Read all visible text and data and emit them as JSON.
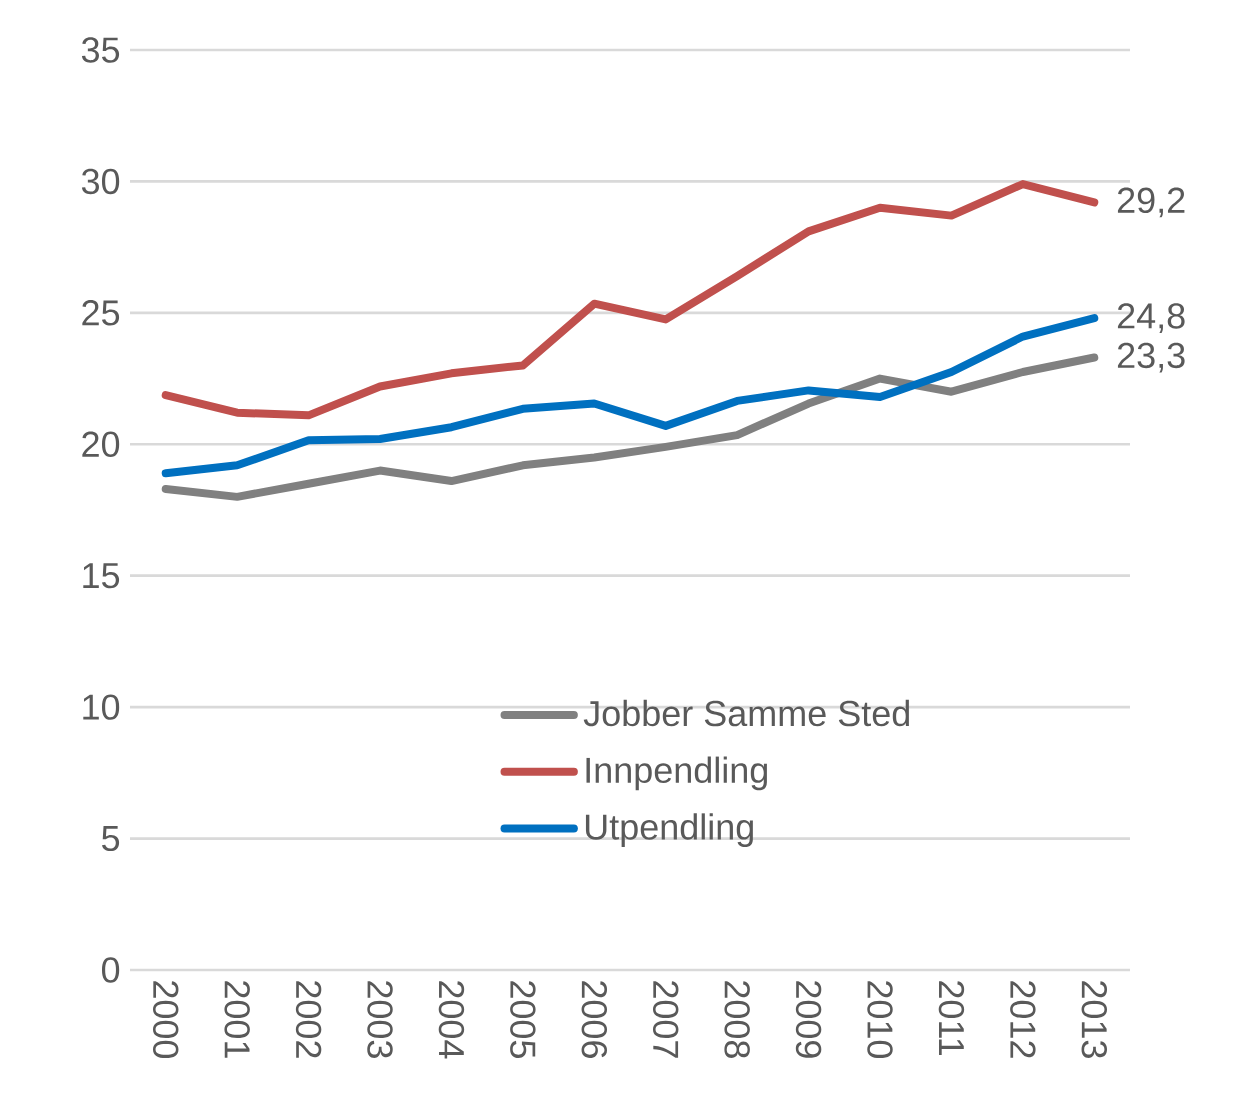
{
  "chart_data": {
    "type": "line",
    "categories": [
      "2000",
      "2001",
      "2002",
      "2003",
      "2004",
      "2005",
      "2006",
      "2007",
      "2008",
      "2009",
      "2010",
      "2011",
      "2012",
      "2013"
    ],
    "series": [
      {
        "name": "Jobber Samme Sted",
        "color": "#808080",
        "values": [
          18.3,
          18.0,
          18.5,
          19.0,
          18.6,
          19.2,
          19.5,
          19.9,
          20.35,
          21.55,
          22.5,
          22.0,
          22.75,
          23.3
        ],
        "value_labels": [
          null,
          null,
          null,
          null,
          null,
          null,
          null,
          null,
          null,
          null,
          null,
          null,
          null,
          "23,3"
        ]
      },
      {
        "name": "Innpendling",
        "color": "#c0504d",
        "values": [
          21.87,
          21.2,
          21.1,
          22.2,
          22.7,
          23.0,
          25.35,
          24.75,
          26.4,
          28.1,
          29.0,
          28.7,
          29.9,
          29.2
        ],
        "value_labels": [
          null,
          null,
          null,
          null,
          null,
          null,
          null,
          null,
          null,
          null,
          null,
          null,
          null,
          "29,2"
        ]
      },
      {
        "name": "Utpendling",
        "color": "#0070c0",
        "values": [
          18.9,
          19.2,
          20.15,
          20.2,
          20.65,
          21.35,
          21.55,
          20.7,
          21.65,
          22.05,
          21.8,
          22.75,
          24.1,
          24.8
        ],
        "value_labels": [
          null,
          null,
          null,
          null,
          null,
          null,
          null,
          null,
          null,
          null,
          null,
          null,
          null,
          "24,8"
        ]
      }
    ],
    "ylim": [
      0,
      35
    ],
    "yticks": [
      0,
      5,
      10,
      15,
      20,
      25,
      30,
      35
    ],
    "grid": "y",
    "legend": "bottom",
    "marker": "none",
    "line_style": "solid"
  }
}
